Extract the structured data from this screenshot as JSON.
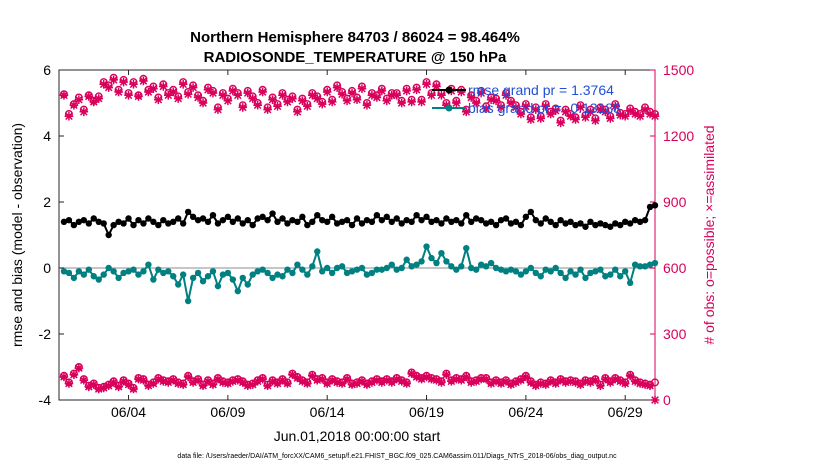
{
  "figure": {
    "title_line1": "Northern Hemisphere 84703 / 86024 = 98.464%",
    "title_line2": "RADIOSONDE_TEMPERATURE @ 150 hPa",
    "footer": "data file: /Users/raeder/DAI/ATM_forcXX/CAM6_setup/f.e21.FHIST_BGC.f09_025.CAM6assim.011/Diags_NTrS_2018-06/obs_diag_output.nc"
  },
  "chart_data": {
    "type": "line",
    "xlabel": "Jun.01,2018 00:00:00 start",
    "ylabel_left": "rmse and bias (model - observation)",
    "ylabel_right": "# of obs: o=possible; ×=assimilated",
    "x_range_days": [
      0.5,
      30.5
    ],
    "x_ticks": [
      {
        "day": 4,
        "label": "06/04"
      },
      {
        "day": 9,
        "label": "06/09"
      },
      {
        "day": 14,
        "label": "06/14"
      },
      {
        "day": 19,
        "label": "06/19"
      },
      {
        "day": 24,
        "label": "06/24"
      },
      {
        "day": 29,
        "label": "06/29"
      }
    ],
    "ylim_left": [
      -4,
      6
    ],
    "y_ticks_left": [
      -4,
      -2,
      0,
      2,
      4,
      6
    ],
    "ylim_right": [
      0,
      1500
    ],
    "y_ticks_right": [
      0,
      300,
      600,
      900,
      1200,
      1500
    ],
    "zero_line": 0,
    "colors": {
      "rmse": "#000000",
      "bias": "#008080",
      "obs": "#d9005b",
      "right_axis": "#d9005b",
      "legend_text": "#1f4fd8",
      "zero_line": "#b3b3b3"
    },
    "legend": [
      {
        "label": "rmse grand pr = 1.3764",
        "color": "#000000"
      },
      {
        "label": "bias grand pr = -0.13188",
        "color": "#008080"
      }
    ],
    "x_values_days": [
      0.75,
      1,
      1.25,
      1.5,
      1.75,
      2,
      2.25,
      2.5,
      2.75,
      3,
      3.25,
      3.5,
      3.75,
      4,
      4.25,
      4.5,
      4.75,
      5,
      5.25,
      5.5,
      5.75,
      6,
      6.25,
      6.5,
      6.75,
      7,
      7.25,
      7.5,
      7.75,
      8,
      8.25,
      8.5,
      8.75,
      9,
      9.25,
      9.5,
      9.75,
      10,
      10.25,
      10.5,
      10.75,
      11,
      11.25,
      11.5,
      11.75,
      12,
      12.25,
      12.5,
      12.75,
      13,
      13.25,
      13.5,
      13.75,
      14,
      14.25,
      14.5,
      14.75,
      15,
      15.25,
      15.5,
      15.75,
      16,
      16.25,
      16.5,
      16.75,
      17,
      17.25,
      17.5,
      17.75,
      18,
      18.25,
      18.5,
      18.75,
      19,
      19.25,
      19.5,
      19.75,
      20,
      20.25,
      20.5,
      20.75,
      21,
      21.25,
      21.5,
      21.75,
      22,
      22.25,
      22.5,
      22.75,
      23,
      23.25,
      23.5,
      23.75,
      24,
      24.25,
      24.5,
      24.75,
      25,
      25.25,
      25.5,
      25.75,
      26,
      26.25,
      26.5,
      26.75,
      27,
      27.25,
      27.5,
      27.75,
      28,
      28.25,
      28.5,
      28.75,
      29,
      29.25,
      29.5,
      29.75,
      30,
      30.25,
      30.5
    ],
    "series": [
      {
        "name": "rmse",
        "values": [
          1.4,
          1.45,
          1.3,
          1.4,
          1.45,
          1.35,
          1.5,
          1.4,
          1.35,
          1.0,
          1.3,
          1.4,
          1.35,
          1.5,
          1.3,
          1.45,
          1.35,
          1.5,
          1.4,
          1.3,
          1.45,
          1.35,
          1.4,
          1.5,
          1.35,
          1.7,
          1.55,
          1.45,
          1.5,
          1.4,
          1.6,
          1.35,
          1.45,
          1.55,
          1.4,
          1.5,
          1.35,
          1.45,
          1.3,
          1.5,
          1.55,
          1.45,
          1.65,
          1.4,
          1.5,
          1.35,
          1.45,
          1.4,
          1.55,
          1.3,
          1.4,
          1.6,
          1.45,
          1.4,
          1.55,
          1.35,
          1.4,
          1.45,
          1.3,
          1.5,
          1.35,
          1.45,
          1.4,
          1.6,
          1.45,
          1.55,
          1.4,
          1.5,
          1.35,
          1.45,
          1.4,
          1.6,
          1.45,
          1.55,
          1.4,
          1.45,
          1.35,
          1.5,
          1.4,
          1.45,
          1.35,
          1.6,
          1.4,
          1.5,
          1.45,
          1.35,
          1.4,
          1.3,
          1.45,
          1.5,
          1.35,
          1.4,
          1.3,
          1.55,
          1.7,
          1.45,
          1.35,
          1.5,
          1.4,
          1.3,
          1.45,
          1.35,
          1.4,
          1.3,
          1.35,
          1.25,
          1.4,
          1.3,
          1.35,
          1.3,
          1.25,
          1.35,
          1.3,
          1.4,
          1.35,
          1.45,
          1.4,
          1.45,
          1.85,
          1.9
        ]
      },
      {
        "name": "bias",
        "values": [
          -0.1,
          -0.15,
          -0.3,
          -0.1,
          -0.2,
          -0.05,
          -0.25,
          -0.35,
          -0.2,
          0,
          -0.1,
          -0.3,
          -0.15,
          -0.1,
          -0.05,
          -0.2,
          -0.1,
          0.1,
          -0.35,
          -0.05,
          -0.15,
          -0.1,
          -0.25,
          -0.5,
          -0.2,
          -1.0,
          -0.3,
          -0.15,
          -0.4,
          -0.25,
          -0.1,
          -0.55,
          -0.2,
          -0.15,
          -0.35,
          -0.7,
          -0.3,
          -0.5,
          -0.2,
          -0.1,
          -0.05,
          -0.15,
          -0.3,
          -0.2,
          -0.25,
          -0.05,
          -0.15,
          0.1,
          -0.05,
          -0.2,
          0.05,
          0.5,
          -0.1,
          0,
          -0.15,
          0,
          0.05,
          -0.15,
          -0.1,
          -0.05,
          0,
          -0.2,
          -0.15,
          -0.05,
          -0.05,
          0,
          0.1,
          -0.05,
          0,
          0.25,
          0.05,
          0.1,
          0.2,
          0.65,
          0.3,
          0.15,
          0.45,
          0.2,
          0.05,
          -0.05,
          0.05,
          0.6,
          0,
          -0.05,
          0.1,
          0.05,
          0.15,
          0,
          -0.05,
          -0.1,
          -0.05,
          -0.1,
          -0.2,
          -0.1,
          0,
          -0.15,
          -0.25,
          -0.05,
          -0.1,
          0,
          -0.15,
          -0.3,
          -0.1,
          -0.2,
          -0.05,
          -0.3,
          -0.15,
          -0.1,
          -0.05,
          -0.25,
          -0.2,
          -0.05,
          -0.25,
          -0.1,
          -0.45,
          0.1,
          0.05,
          0.05,
          0.1,
          0.15
        ]
      },
      {
        "name": "obs_possible",
        "axis": "right",
        "marker": "o",
        "values": [
          1390,
          1300,
          1345,
          1375,
          1320,
          1385,
          1360,
          1380,
          1445,
          1430,
          1465,
          1410,
          1455,
          1395,
          1445,
          1385,
          1460,
          1410,
          1425,
          1375,
          1435,
          1395,
          1410,
          1380,
          1445,
          1400,
          1430,
          1385,
          1360,
          1420,
          1405,
          1330,
          1395,
          1370,
          1415,
          1395,
          1340,
          1405,
          1380,
          1350,
          1410,
          1330,
          1375,
          1345,
          1395,
          1365,
          1380,
          1320,
          1370,
          1345,
          1395,
          1380,
          1355,
          1410,
          1365,
          1430,
          1400,
          1370,
          1405,
          1375,
          1425,
          1350,
          1395,
          1385,
          1415,
          1370,
          1395,
          1395,
          1360,
          1415,
          1365,
          1420,
          1365,
          1445,
          1395,
          1435,
          1395,
          1350,
          1415,
          1360,
          1410,
          1320,
          1385,
          1360,
          1405,
          1335,
          1375,
          1370,
          1340,
          1395,
          1360,
          1340,
          1310,
          1345,
          1285,
          1330,
          1290,
          1345,
          1310,
          1325,
          1270,
          1320,
          1300,
          1285,
          1340,
          1295,
          1320,
          1280,
          1330,
          1320,
          1290,
          1345,
          1305,
          1300,
          1325,
          1310,
          1300,
          1330,
          1310,
          1300
        ]
      },
      {
        "name": "obs_assimilated",
        "axis": "right",
        "marker": "x",
        "values": [
          1385,
          1290,
          1340,
          1365,
          1310,
          1380,
          1355,
          1370,
          1435,
          1420,
          1455,
          1400,
          1445,
          1385,
          1435,
          1380,
          1450,
          1400,
          1415,
          1365,
          1425,
          1385,
          1400,
          1370,
          1435,
          1390,
          1420,
          1375,
          1350,
          1410,
          1395,
          1320,
          1385,
          1360,
          1405,
          1385,
          1330,
          1395,
          1370,
          1340,
          1400,
          1320,
          1365,
          1335,
          1385,
          1355,
          1370,
          1310,
          1360,
          1335,
          1385,
          1370,
          1345,
          1400,
          1355,
          1420,
          1390,
          1360,
          1395,
          1365,
          1415,
          1340,
          1385,
          1375,
          1405,
          1360,
          1385,
          1385,
          1350,
          1405,
          1355,
          1410,
          1355,
          1435,
          1385,
          1425,
          1385,
          1340,
          1405,
          1350,
          1400,
          1310,
          1375,
          1350,
          1395,
          1325,
          1365,
          1360,
          1330,
          1385,
          1350,
          1330,
          1300,
          1335,
          1275,
          1320,
          1280,
          1335,
          1300,
          1315,
          1260,
          1310,
          1290,
          1275,
          1330,
          1285,
          1310,
          1270,
          1320,
          1310,
          1280,
          1335,
          1295,
          1290,
          1315,
          1300,
          1290,
          1320,
          1300,
          1290
        ]
      },
      {
        "name": "obs_possible_bottom",
        "axis": "right",
        "marker": "o",
        "values": [
          110,
          80,
          120,
          150,
          95,
          65,
          75,
          55,
          60,
          70,
          85,
          65,
          90,
          75,
          55,
          100,
          95,
          70,
          80,
          100,
          90,
          85,
          95,
          80,
          75,
          110,
          85,
          95,
          70,
          90,
          75,
          100,
          85,
          80,
          90,
          95,
          85,
          70,
          75,
          90,
          100,
          70,
          90,
          80,
          95,
          80,
          120,
          105,
          90,
          80,
          115,
          95,
          100,
          80,
          95,
          85,
          80,
          100,
          75,
          80,
          90,
          75,
          85,
          95,
          85,
          95,
          85,
          100,
          90,
          80,
          125,
          110,
          100,
          110,
          100,
          95,
          85,
          120,
          90,
          100,
          95,
          110,
          85,
          90,
          100,
          100,
          80,
          90,
          80,
          90,
          75,
          85,
          95,
          110,
          85,
          70,
          80,
          75,
          90,
          80,
          95,
          85,
          90,
          85,
          75,
          90,
          85,
          95,
          70,
          100,
          85,
          100,
          90,
          80,
          115,
          90,
          80,
          75,
          70,
          80
        ]
      },
      {
        "name": "obs_assimilated_bottom",
        "axis": "right",
        "marker": "x",
        "values": [
          105,
          75,
          115,
          145,
          90,
          60,
          70,
          50,
          55,
          65,
          80,
          60,
          85,
          70,
          50,
          95,
          90,
          65,
          75,
          95,
          85,
          80,
          90,
          75,
          70,
          105,
          80,
          90,
          65,
          85,
          70,
          95,
          80,
          75,
          85,
          90,
          80,
          65,
          70,
          85,
          95,
          65,
          85,
          75,
          90,
          75,
          115,
          100,
          85,
          75,
          110,
          90,
          95,
          75,
          90,
          80,
          75,
          95,
          70,
          75,
          85,
          70,
          80,
          90,
          80,
          90,
          80,
          95,
          85,
          75,
          120,
          105,
          95,
          105,
          95,
          90,
          80,
          115,
          85,
          95,
          90,
          105,
          80,
          85,
          95,
          95,
          75,
          85,
          75,
          85,
          70,
          80,
          90,
          105,
          80,
          65,
          75,
          70,
          85,
          75,
          90,
          80,
          85,
          80,
          70,
          85,
          80,
          90,
          65,
          95,
          80,
          95,
          85,
          75,
          110,
          85,
          75,
          70,
          65,
          0
        ]
      }
    ]
  }
}
